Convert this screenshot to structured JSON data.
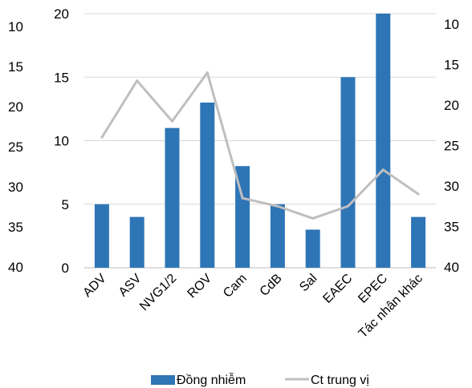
{
  "chart_data": {
    "type": "bar",
    "categories": [
      "ADV",
      "ASV",
      "NVG1/2",
      "ROV",
      "Cam",
      "CdB",
      "Sal",
      "EAEC",
      "EPEC",
      "Tác nhân khác"
    ],
    "series": [
      {
        "name": "Đồng nhiễm",
        "type": "bar",
        "axis": "left",
        "color": "#2E75B6",
        "values": [
          5,
          4,
          11,
          13,
          8,
          5,
          3,
          15,
          20,
          4
        ]
      },
      {
        "name": "Ct trung vị",
        "type": "line",
        "axis": "right",
        "color": "#BFBFBF",
        "values": [
          24,
          17,
          22,
          16,
          31.5,
          32.5,
          34,
          32.5,
          28,
          31
        ]
      }
    ],
    "left_axis": {
      "min": 0,
      "max": 20,
      "ticks": [
        0,
        5,
        10,
        15,
        20
      ]
    },
    "right_axis": {
      "min": 10,
      "max": 40,
      "reversed": true,
      "ticks": [
        10,
        15,
        20,
        25,
        30,
        35,
        40
      ]
    },
    "grid": true,
    "legend": "bottom"
  }
}
